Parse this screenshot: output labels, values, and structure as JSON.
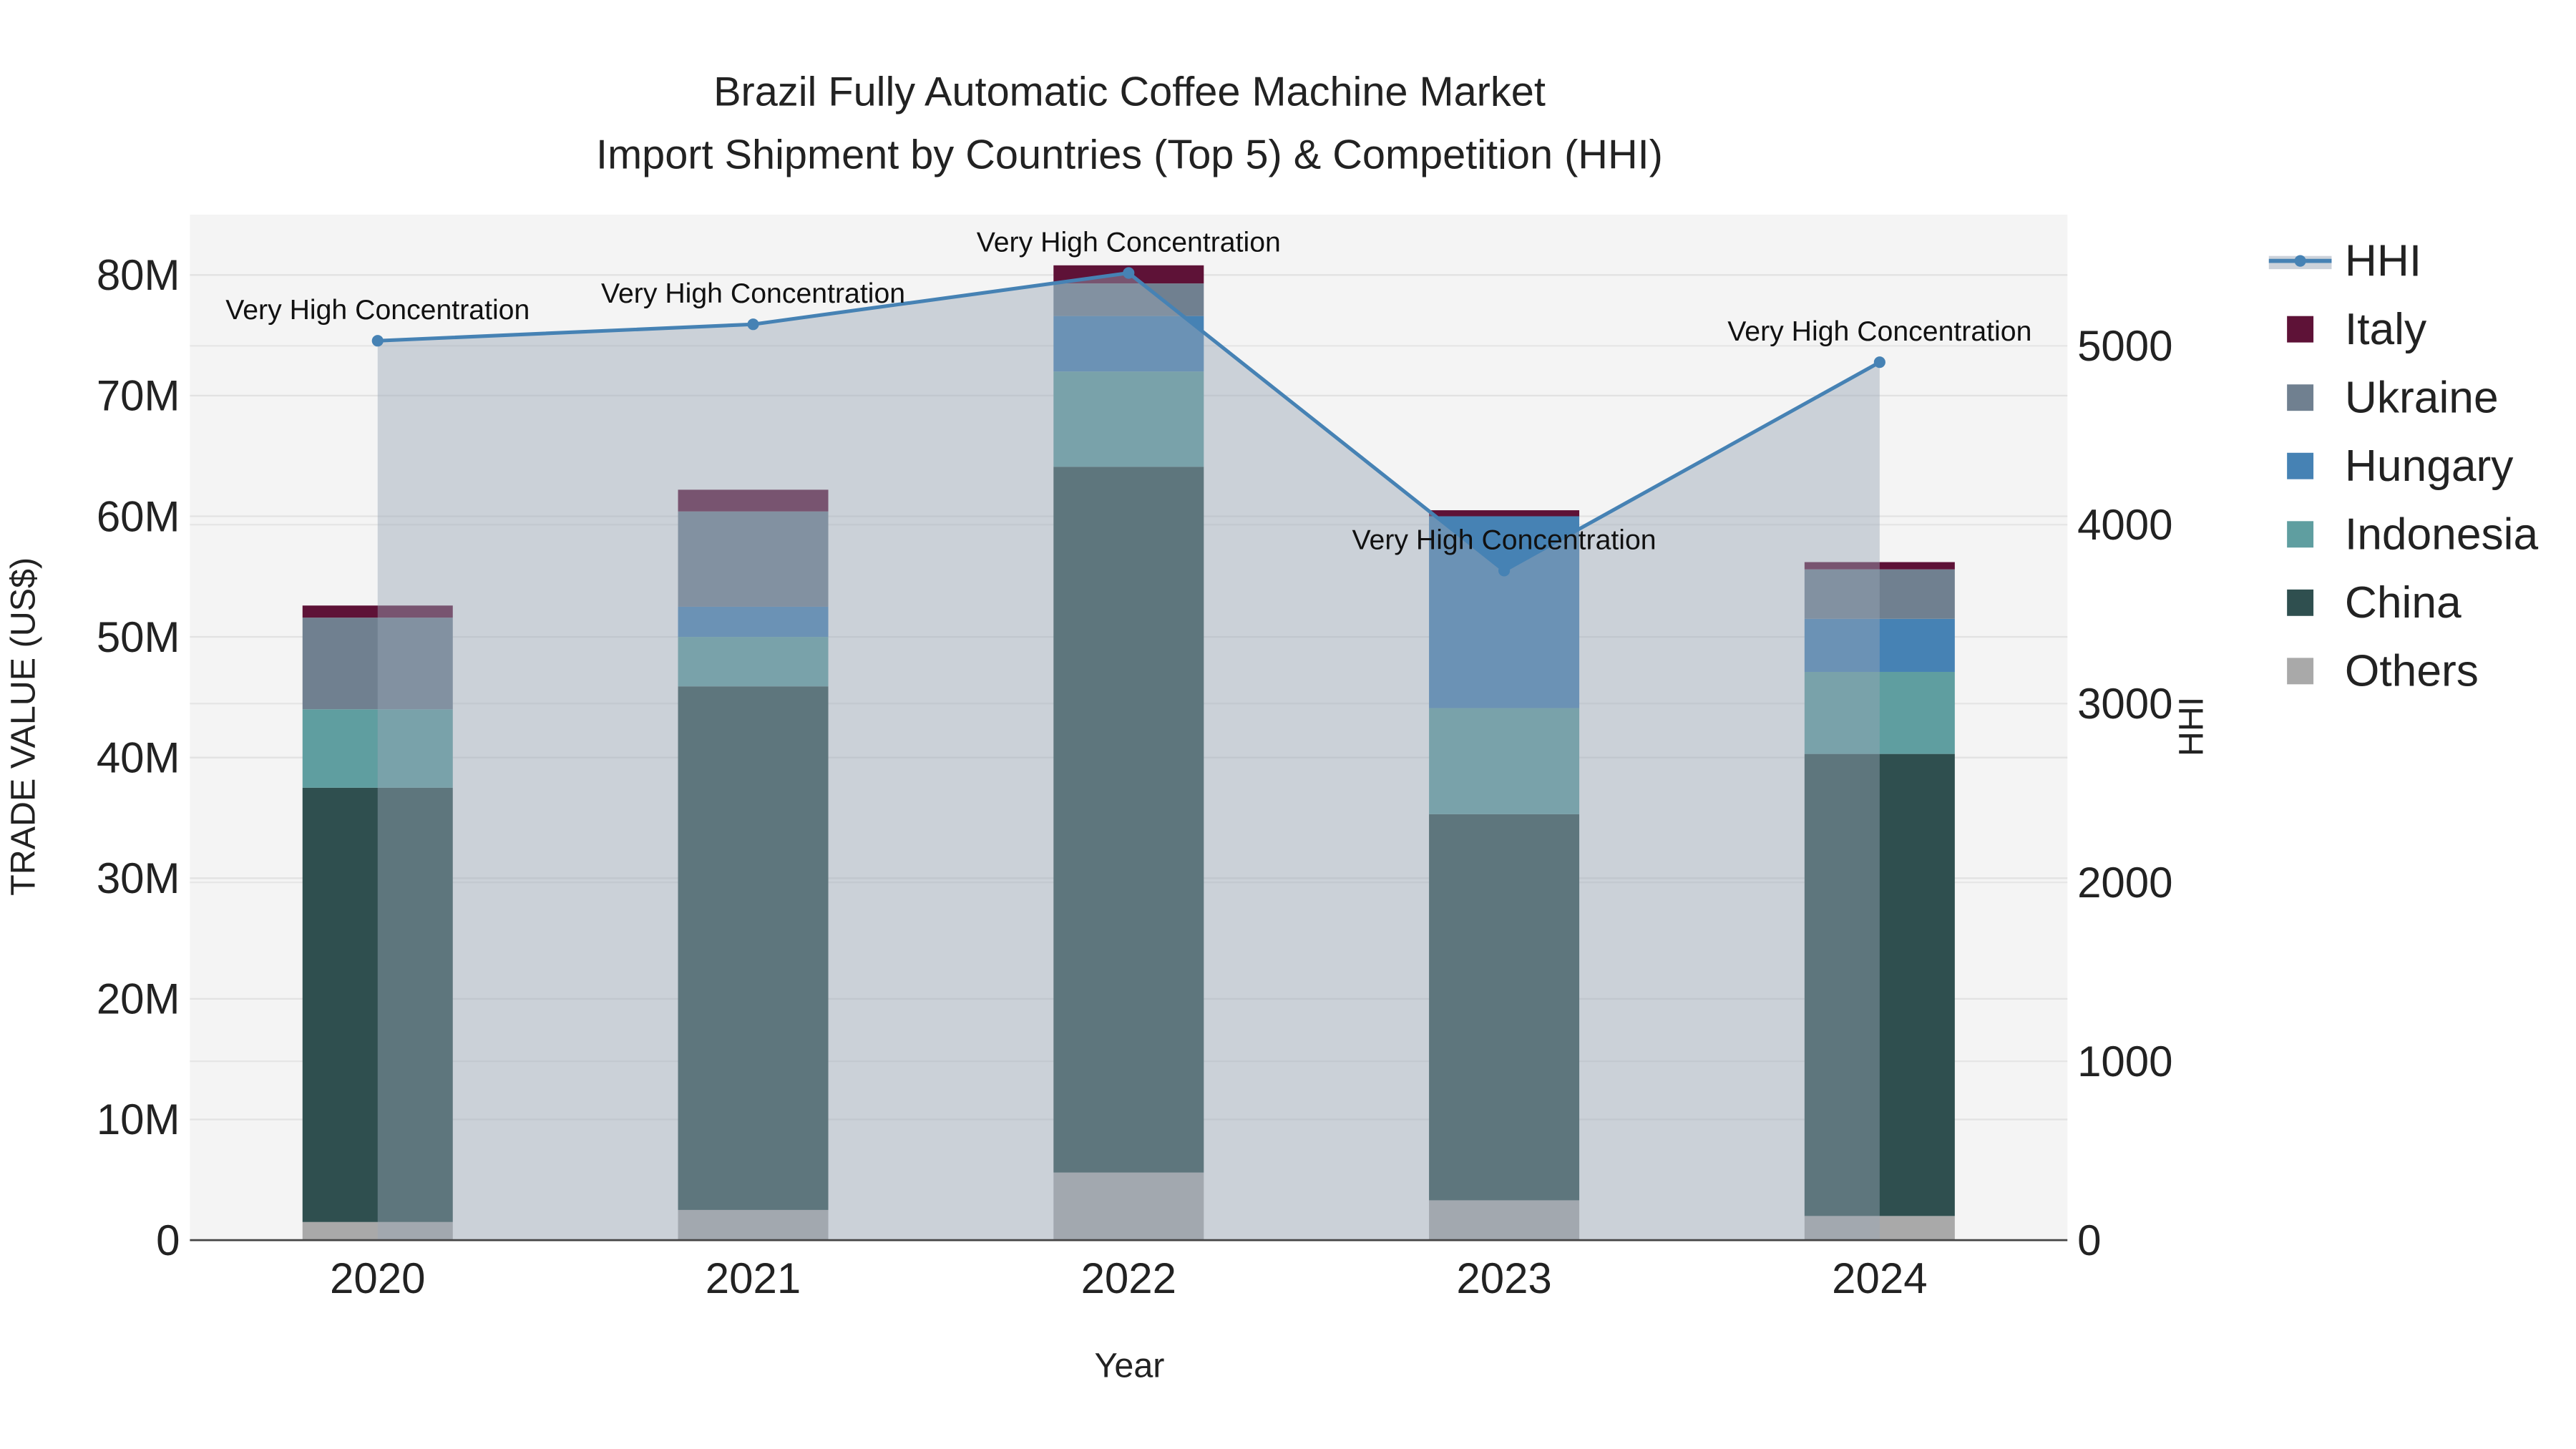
{
  "chart_data": {
    "type": "bar",
    "title_line1": "Brazil Fully Automatic Coffee Machine Market",
    "title_line2": "Import Shipment by Countries (Top 5) & Competition (HHI)",
    "xlabel": "Year",
    "ylabel": "TRADE VALUE (US$)",
    "y2label": "HHI",
    "categories": [
      "2020",
      "2021",
      "2022",
      "2023",
      "2024"
    ],
    "ylim": [
      0,
      85000000
    ],
    "y_ticks": [
      0,
      10000000,
      20000000,
      30000000,
      40000000,
      50000000,
      60000000,
      70000000,
      80000000
    ],
    "y_tick_labels": [
      "0",
      "10M",
      "20M",
      "30M",
      "40M",
      "50M",
      "60M",
      "70M",
      "80M"
    ],
    "y2lim": [
      0,
      5733
    ],
    "y2_ticks": [
      0,
      1000,
      2000,
      3000,
      4000,
      5000
    ],
    "y2_tick_labels": [
      "0",
      "1000",
      "2000",
      "3000",
      "4000",
      "5000"
    ],
    "series": [
      {
        "name": "Others",
        "color": "#a9a9a9",
        "values": [
          1500000,
          2500000,
          5600000,
          3300000,
          2000000
        ]
      },
      {
        "name": "China",
        "color": "#2f4f4f",
        "values": [
          36000000,
          43400000,
          58500000,
          32000000,
          38300000
        ]
      },
      {
        "name": "Indonesia",
        "color": "#5f9ea0",
        "values": [
          6500000,
          4100000,
          7900000,
          8800000,
          6800000
        ]
      },
      {
        "name": "Hungary",
        "color": "#4682b4",
        "values": [
          0,
          2500000,
          4600000,
          15900000,
          4400000
        ]
      },
      {
        "name": "Ukraine",
        "color": "#708090",
        "values": [
          7600000,
          7900000,
          2700000,
          0,
          4100000
        ]
      },
      {
        "name": "Italy",
        "color": "#5e1237",
        "values": [
          1000000,
          1800000,
          1500000,
          500000,
          600000
        ]
      }
    ],
    "hhi": {
      "name": "HHI",
      "color": "#4682b4",
      "values": [
        5028,
        5120,
        5407,
        3743,
        4908
      ],
      "annotations": [
        "Very High Concentration",
        "Very High Concentration",
        "Very High Concentration",
        "Very High Concentration",
        "Very High Concentration"
      ]
    },
    "legend": [
      "HHI",
      "Italy",
      "Ukraine",
      "Hungary",
      "Indonesia",
      "China",
      "Others"
    ],
    "legend_position": "right",
    "grid": true
  }
}
